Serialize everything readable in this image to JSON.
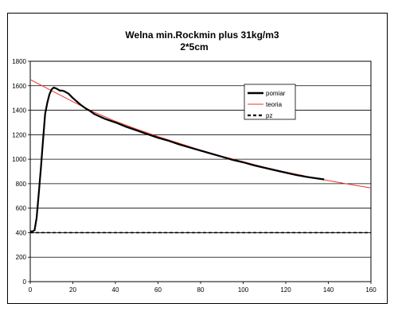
{
  "chart_data": {
    "type": "line",
    "title": "Welna min.Rockmin plus 31kg/m3",
    "subtitle": "2*5cm",
    "xlabel": "",
    "ylabel": "",
    "xlim": [
      0,
      160
    ],
    "ylim": [
      0,
      1800
    ],
    "xticks": [
      0,
      20,
      40,
      60,
      80,
      100,
      120,
      140,
      160
    ],
    "yticks": [
      0,
      200,
      400,
      600,
      800,
      1000,
      1200,
      1400,
      1600,
      1800
    ],
    "grid": "horizontal",
    "legend_position": "right",
    "series": [
      {
        "name": "pomiar",
        "color": "#000000",
        "style": "solid-thick",
        "x": [
          0,
          1,
          2,
          3,
          4,
          5,
          6,
          7,
          8,
          9,
          10,
          11,
          12,
          13,
          14,
          15,
          16,
          18,
          20,
          22,
          24,
          26,
          28,
          30,
          35,
          40,
          45,
          50,
          55,
          60,
          65,
          70,
          75,
          80,
          85,
          90,
          95,
          100,
          105,
          110,
          115,
          120,
          125,
          130,
          135,
          138
        ],
        "y": [
          410,
          410,
          420,
          520,
          720,
          930,
          1150,
          1370,
          1460,
          1530,
          1570,
          1585,
          1580,
          1570,
          1560,
          1560,
          1555,
          1535,
          1500,
          1470,
          1440,
          1415,
          1395,
          1370,
          1330,
          1300,
          1265,
          1235,
          1205,
          1175,
          1150,
          1120,
          1095,
          1070,
          1045,
          1020,
          995,
          975,
          950,
          930,
          910,
          890,
          870,
          855,
          842,
          835
        ]
      },
      {
        "name": "teoria",
        "color": "#e8352a",
        "style": "solid-thin",
        "x": [
          0,
          10,
          20,
          30,
          40,
          50,
          60,
          70,
          80,
          90,
          100,
          110,
          120,
          130,
          140,
          150,
          160
        ],
        "y": [
          1650,
          1560,
          1470,
          1385,
          1310,
          1245,
          1185,
          1130,
          1075,
          1025,
          980,
          935,
          895,
          860,
          825,
          795,
          765
        ]
      },
      {
        "name": "pz",
        "color": "#000000",
        "style": "dashed-thick",
        "x": [
          0,
          160
        ],
        "y": [
          400,
          400
        ]
      }
    ]
  }
}
